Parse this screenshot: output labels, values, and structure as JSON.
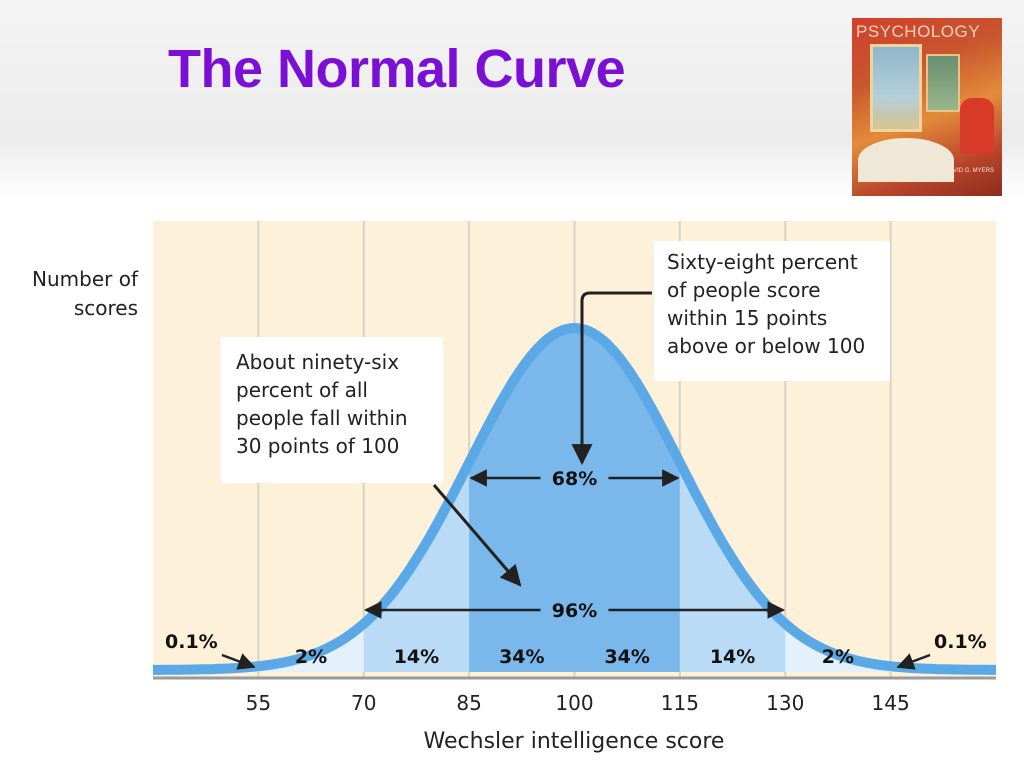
{
  "slide": {
    "title": "The Normal Curve"
  },
  "book_cover": {
    "title": "PSYCHOLOGY",
    "author": "DAVID G. MYERS"
  },
  "colors": {
    "title": "#7a10d6",
    "background_panel": "#fdf1d9",
    "curve": "#5aa9e6",
    "band_outer": "#e3f1fc",
    "band_mid": "#b9dbf6",
    "band_inner": "#7ab8ec",
    "gridline": "#d9d3c6"
  },
  "chart_data": {
    "type": "area",
    "distribution": "normal",
    "mean": 100,
    "sd": 15,
    "ylabel": [
      "Number of",
      "scores"
    ],
    "xlabel": "Wechsler intelligence score",
    "xlim": [
      40,
      160
    ],
    "xticks": [
      55,
      70,
      85,
      100,
      115,
      130,
      145
    ],
    "regions": [
      {
        "from": 55,
        "to": 70,
        "label": "2%"
      },
      {
        "from": 70,
        "to": 85,
        "label": "14%"
      },
      {
        "from": 85,
        "to": 100,
        "label": "34%"
      },
      {
        "from": 100,
        "to": 115,
        "label": "34%"
      },
      {
        "from": 115,
        "to": 130,
        "label": "14%"
      },
      {
        "from": 130,
        "to": 145,
        "label": "2%"
      }
    ],
    "tails": [
      {
        "side": "left",
        "label": "0.1%"
      },
      {
        "side": "right",
        "label": "0.1%"
      }
    ],
    "ranges": [
      {
        "from": 85,
        "to": 115,
        "label": "68%"
      },
      {
        "from": 70,
        "to": 130,
        "label": "96%"
      }
    ],
    "annotations": [
      {
        "id": "note-68",
        "lines": [
          "Sixty-eight percent",
          "of people score",
          "within 15 points",
          "above or below 100"
        ]
      },
      {
        "id": "note-96",
        "lines": [
          "About ninety-six",
          "percent of all",
          "people fall within",
          "30 points of 100"
        ]
      }
    ]
  }
}
